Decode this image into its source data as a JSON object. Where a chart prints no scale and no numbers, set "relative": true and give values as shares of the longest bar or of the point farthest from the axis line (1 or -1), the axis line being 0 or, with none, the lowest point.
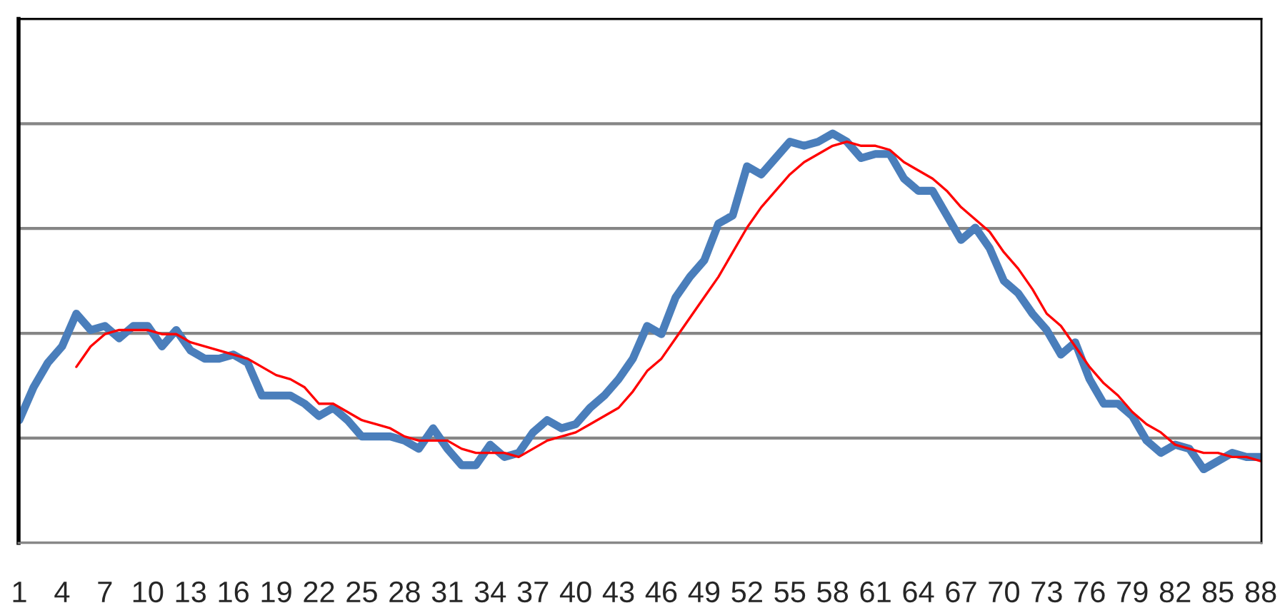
{
  "chart_data": {
    "type": "line",
    "relative": true,
    "grid": "y",
    "marker": "none",
    "line_style": "solid",
    "categories": [
      "1",
      null,
      null,
      "4",
      null,
      null,
      "7",
      null,
      null,
      "10",
      null,
      null,
      "13",
      null,
      null,
      "16",
      null,
      null,
      "19",
      null,
      null,
      "22",
      null,
      null,
      "25",
      null,
      null,
      "28",
      null,
      null,
      "31",
      null,
      null,
      "34",
      null,
      null,
      "37",
      null,
      null,
      "40",
      null,
      null,
      "43",
      null,
      null,
      "46",
      null,
      null,
      "49",
      null,
      null,
      "52",
      null,
      null,
      "55",
      null,
      null,
      "58",
      null,
      null,
      "61",
      null,
      null,
      "64",
      null,
      null,
      "67",
      null,
      null,
      "70",
      null,
      null,
      "73",
      null,
      null,
      "76",
      null,
      null,
      "79",
      null,
      null,
      "82",
      null,
      null,
      "85",
      null,
      null,
      "88"
    ],
    "series": [
      {
        "color": "#4a7ebb",
        "values": [
          0.3,
          0.38,
          0.44,
          0.48,
          0.56,
          0.52,
          0.53,
          0.5,
          0.53,
          0.53,
          0.48,
          0.52,
          0.47,
          0.45,
          0.45,
          0.46,
          0.44,
          0.36,
          0.36,
          0.36,
          0.34,
          0.31,
          0.33,
          0.3,
          0.26,
          0.26,
          0.26,
          0.25,
          0.23,
          0.28,
          0.23,
          0.19,
          0.19,
          0.24,
          0.21,
          0.22,
          0.27,
          0.3,
          0.28,
          0.29,
          0.33,
          0.36,
          0.4,
          0.45,
          0.53,
          0.51,
          0.6,
          0.65,
          0.69,
          0.78,
          0.8,
          0.92,
          0.9,
          0.94,
          0.98,
          0.97,
          0.98,
          1,
          0.98,
          0.94,
          0.95,
          0.95,
          0.89,
          0.86,
          0.86,
          0.8,
          0.74,
          0.77,
          0.72,
          0.64,
          0.61,
          0.56,
          0.52,
          0.46,
          0.49,
          0.4,
          0.34,
          0.34,
          0.31,
          0.25,
          0.22,
          0.24,
          0.23,
          0.18,
          0.2,
          0.22,
          0.21,
          0.21
        ]
      },
      {
        "color": "#ff0000",
        "values": [
          null,
          null,
          null,
          null,
          0.43,
          0.48,
          0.51,
          0.52,
          0.52,
          0.52,
          0.51,
          0.51,
          0.49,
          0.48,
          0.47,
          0.46,
          0.45,
          0.43,
          0.41,
          0.4,
          0.38,
          0.34,
          0.34,
          0.32,
          0.3,
          0.29,
          0.28,
          0.26,
          0.25,
          0.25,
          0.25,
          0.23,
          0.22,
          0.22,
          0.22,
          0.21,
          0.23,
          0.25,
          0.26,
          0.27,
          0.29,
          0.31,
          0.33,
          0.37,
          0.42,
          0.45,
          0.5,
          0.55,
          0.6,
          0.65,
          0.71,
          0.77,
          0.82,
          0.86,
          0.9,
          0.93,
          0.95,
          0.97,
          0.98,
          0.97,
          0.97,
          0.96,
          0.93,
          0.91,
          0.89,
          0.86,
          0.82,
          0.79,
          0.76,
          0.71,
          0.67,
          0.62,
          0.56,
          0.53,
          0.48,
          0.43,
          0.39,
          0.36,
          0.32,
          0.29,
          0.27,
          0.24,
          0.23,
          0.22,
          0.22,
          0.21,
          0.21,
          0.2
        ]
      }
    ]
  }
}
